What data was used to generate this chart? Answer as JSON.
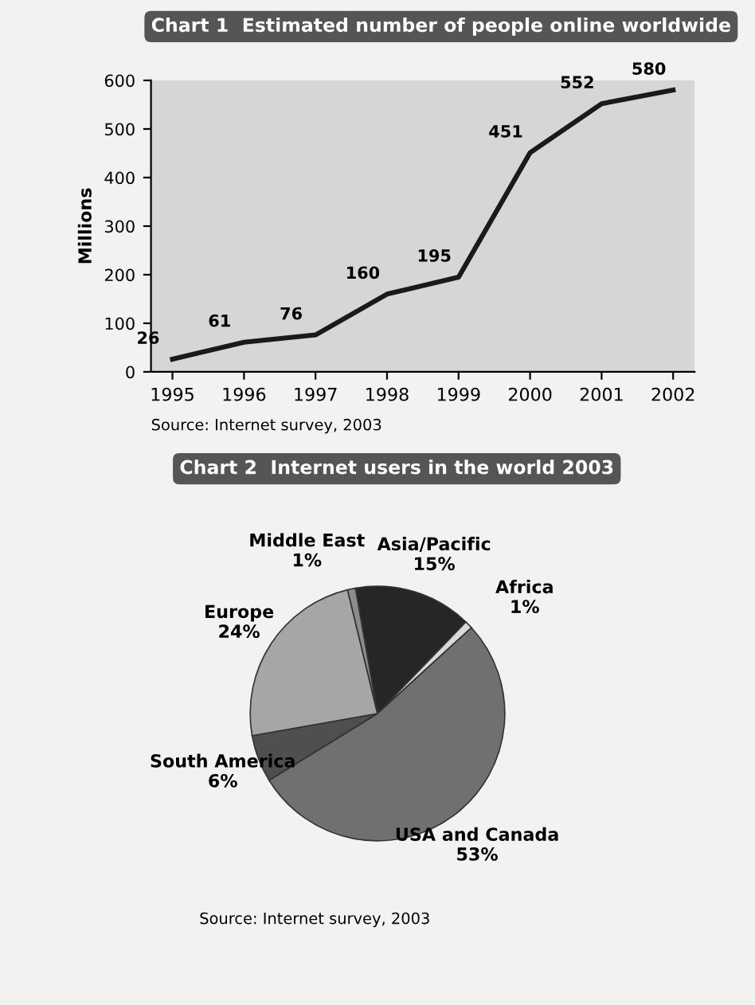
{
  "chart_data": [
    {
      "type": "line",
      "title": "Chart 1  Estimated number of people online worldwide",
      "ylabel": "Millions",
      "categories": [
        "1995",
        "1996",
        "1997",
        "1998",
        "1999",
        "2000",
        "2001",
        "2002"
      ],
      "values": [
        26,
        61,
        76,
        160,
        195,
        451,
        552,
        580
      ],
      "color": "#1a1a1a",
      "ylim": [
        0,
        600
      ],
      "yticks": [
        0,
        100,
        200,
        300,
        400,
        500,
        600
      ],
      "data_labels": true,
      "grid": false,
      "annotations": [
        "Source: Internet survey, 2003"
      ]
    },
    {
      "type": "pie",
      "title": "Chart 2  Internet users in the world 2003",
      "categories": [
        "Asia/Pacific",
        "Africa",
        "USA and Canada",
        "South America",
        "Europe",
        "Middle East"
      ],
      "values": [
        15,
        1,
        53,
        6,
        24,
        1
      ],
      "value_labels": [
        "15%",
        "1%",
        "53%",
        "6%",
        "24%",
        "1%"
      ],
      "colors": [
        "#262626",
        "#d9d9d9",
        "#707070",
        "#4f4f4f",
        "#a6a6a6",
        "#8c8c8c"
      ],
      "annotations": [
        "Source: Internet survey, 2003"
      ]
    }
  ]
}
